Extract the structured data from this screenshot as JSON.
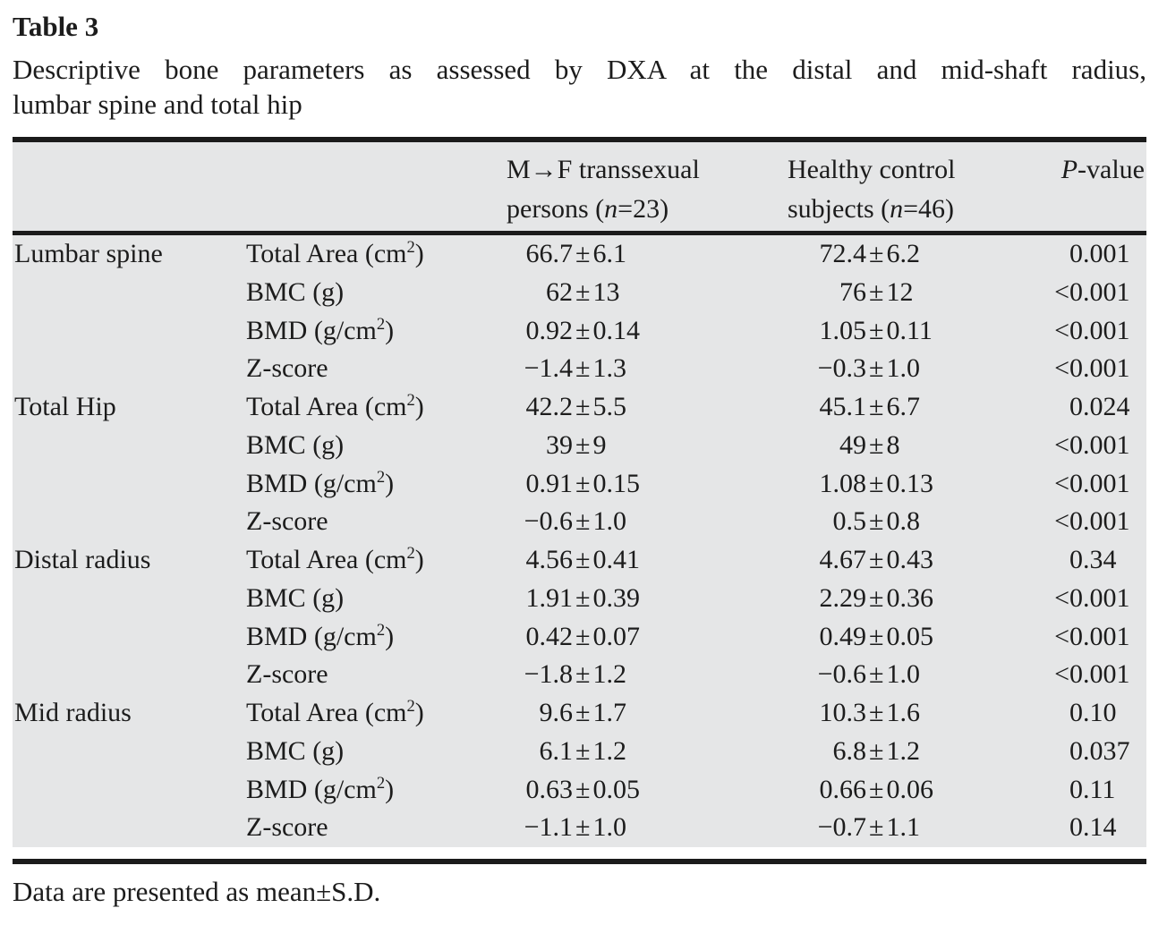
{
  "page": {
    "title": "Table 3",
    "caption_lines": [
      "Descriptive bone parameters as assessed by DXA at the distal and mid-shaft radius,",
      "lumbar spine and total hip"
    ],
    "footnote": "Data are presented as mean±S.D."
  },
  "table": {
    "headers": {
      "group_mf": [
        "M→F transsexual",
        "persons (n=23)"
      ],
      "group_control": [
        "Healthy control",
        "subjects (n=46)"
      ],
      "pvalue": "P-value"
    },
    "rows": [
      {
        "region": "Lumbar spine",
        "parameter": "Total Area (cm²)",
        "mf": "66.7±6.1",
        "control": "72.4±6.2",
        "p": "0.001"
      },
      {
        "region": "",
        "parameter": "BMC (g)",
        "mf": "62±13",
        "control": "76±12",
        "p": "<0.001"
      },
      {
        "region": "",
        "parameter": "BMD (g/cm²)",
        "mf": "0.92±0.14",
        "control": "1.05±0.11",
        "p": "<0.001"
      },
      {
        "region": "",
        "parameter": "Z-score",
        "mf": "−1.4±1.3",
        "control": "−0.3±1.0",
        "p": "<0.001"
      },
      {
        "region": "Total Hip",
        "parameter": "Total Area (cm²)",
        "mf": "42.2±5.5",
        "control": "45.1±6.7",
        "p": "0.024"
      },
      {
        "region": "",
        "parameter": "BMC (g)",
        "mf": "39±9",
        "control": "49±8",
        "p": "<0.001"
      },
      {
        "region": "",
        "parameter": "BMD (g/cm²)",
        "mf": "0.91±0.15",
        "control": "1.08±0.13",
        "p": "<0.001"
      },
      {
        "region": "",
        "parameter": "Z-score",
        "mf": "−0.6±1.0",
        "control": "0.5±0.8",
        "p": "<0.001"
      },
      {
        "region": "Distal radius",
        "parameter": "Total Area (cm²)",
        "mf": "4.56±0.41",
        "control": "4.67±0.43",
        "p": "0.34"
      },
      {
        "region": "",
        "parameter": "BMC (g)",
        "mf": "1.91±0.39",
        "control": "2.29±0.36",
        "p": "<0.001"
      },
      {
        "region": "",
        "parameter": "BMD (g/cm²)",
        "mf": "0.42±0.07",
        "control": "0.49±0.05",
        "p": "<0.001"
      },
      {
        "region": "",
        "parameter": "Z-score",
        "mf": "−1.8±1.2",
        "control": "−0.6±1.0",
        "p": "<0.001"
      },
      {
        "region": "Mid radius",
        "parameter": "Total Area (cm²)",
        "mf": "9.6±1.7",
        "control": "10.3±1.6",
        "p": "0.10"
      },
      {
        "region": "",
        "parameter": "BMC (g)",
        "mf": "6.1±1.2",
        "control": "6.8±1.2",
        "p": "0.037"
      },
      {
        "region": "",
        "parameter": "BMD (g/cm²)",
        "mf": "0.63±0.05",
        "control": "0.66±0.06",
        "p": "0.11"
      },
      {
        "region": "",
        "parameter": "Z-score",
        "mf": "−1.1±1.0",
        "control": "−0.7±1.1",
        "p": "0.14"
      }
    ]
  },
  "colors": {
    "page_background": "#ffffff",
    "table_background": "#e5e6e7",
    "rule": "#1b1b1b",
    "text": "#1c1c1c"
  }
}
